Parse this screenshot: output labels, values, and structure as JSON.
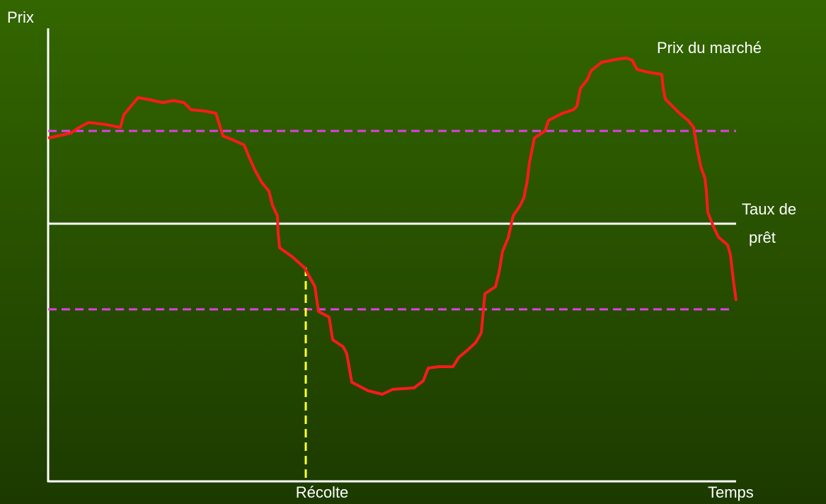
{
  "axes": {
    "y_label": "Prix",
    "x_label": "Temps"
  },
  "labels": {
    "market_price": "Prix du marché",
    "loan_rate": [
      "Taux de",
      "prêt"
    ],
    "harvest": "Récolte"
  }
}
